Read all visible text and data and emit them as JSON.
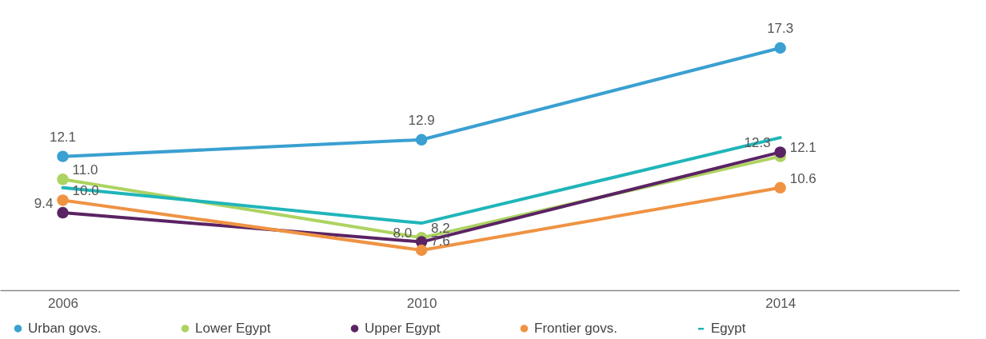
{
  "chart_data": {
    "type": "line",
    "x": [
      2006,
      2010,
      2014
    ],
    "xlim": [
      2005.3,
      2016
    ],
    "xticks": [
      2006,
      2010,
      2014
    ],
    "tick_labels": "x",
    "grid": false,
    "legend": "bottom",
    "marker": "circle",
    "series": [
      {
        "name": "Urban govs.",
        "color": "#3aa0d1",
        "values": [
          12.1,
          12.9,
          17.3
        ],
        "value_labels": [
          "12.1",
          "12.9",
          "17.3"
        ]
      },
      {
        "name": "Lower Egypt",
        "color": "#add361",
        "values": [
          11.0,
          8.2,
          12.1
        ],
        "value_labels": [
          "11.0",
          "8.2",
          "12.1"
        ]
      },
      {
        "name": "Upper Egypt",
        "color": "#5a2364",
        "values": [
          9.4,
          8.0,
          12.3
        ],
        "value_labels": [
          "9.4",
          "8.0",
          "12.3"
        ]
      },
      {
        "name": "Frontier govs.",
        "color": "#ef9343",
        "values": [
          10.0,
          7.6,
          10.6
        ],
        "value_labels": [
          "10.0",
          "7.6",
          "10.6"
        ]
      },
      {
        "name": "Egypt",
        "color": "#20b5b9",
        "values": [
          10.6,
          8.9,
          13.0
        ],
        "marker": "none"
      }
    ]
  }
}
